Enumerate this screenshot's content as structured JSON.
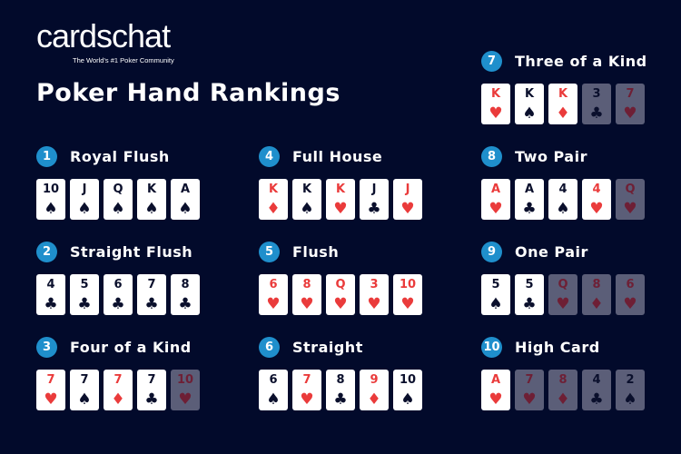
{
  "brand": {
    "name": "cardschat",
    "tagline": "The World's #1 Poker Community"
  },
  "title": "Poker Hand Rankings",
  "colors": {
    "background": "#020a2b",
    "badge": "#1f8fcc",
    "red_suit": "#ea3b3b",
    "dimmed_card": "#5b5e78"
  },
  "hands": [
    {
      "num": "1",
      "name": "Royal Flush",
      "cards": [
        {
          "rank": "10",
          "suit": "♠"
        },
        {
          "rank": "J",
          "suit": "♠"
        },
        {
          "rank": "Q",
          "suit": "♠"
        },
        {
          "rank": "K",
          "suit": "♠"
        },
        {
          "rank": "A",
          "suit": "♠"
        }
      ]
    },
    {
      "num": "2",
      "name": "Straight Flush",
      "cards": [
        {
          "rank": "4",
          "suit": "♣"
        },
        {
          "rank": "5",
          "suit": "♣"
        },
        {
          "rank": "6",
          "suit": "♣"
        },
        {
          "rank": "7",
          "suit": "♣"
        },
        {
          "rank": "8",
          "suit": "♣"
        }
      ]
    },
    {
      "num": "3",
      "name": "Four of a Kind",
      "cards": [
        {
          "rank": "7",
          "suit": "♥"
        },
        {
          "rank": "7",
          "suit": "♠"
        },
        {
          "rank": "7",
          "suit": "♦"
        },
        {
          "rank": "7",
          "suit": "♣"
        },
        {
          "rank": "10",
          "suit": "♥",
          "dim": true
        }
      ]
    },
    {
      "num": "4",
      "name": "Full House",
      "cards": [
        {
          "rank": "K",
          "suit": "♦"
        },
        {
          "rank": "K",
          "suit": "♠"
        },
        {
          "rank": "K",
          "suit": "♥"
        },
        {
          "rank": "J",
          "suit": "♣"
        },
        {
          "rank": "J",
          "suit": "♥"
        }
      ]
    },
    {
      "num": "5",
      "name": "Flush",
      "cards": [
        {
          "rank": "6",
          "suit": "♥"
        },
        {
          "rank": "8",
          "suit": "♥"
        },
        {
          "rank": "Q",
          "suit": "♥"
        },
        {
          "rank": "3",
          "suit": "♥"
        },
        {
          "rank": "10",
          "suit": "♥"
        }
      ]
    },
    {
      "num": "6",
      "name": "Straight",
      "cards": [
        {
          "rank": "6",
          "suit": "♠"
        },
        {
          "rank": "7",
          "suit": "♥"
        },
        {
          "rank": "8",
          "suit": "♣"
        },
        {
          "rank": "9",
          "suit": "♦"
        },
        {
          "rank": "10",
          "suit": "♠"
        }
      ]
    },
    {
      "num": "7",
      "name": "Three of a Kind",
      "cards": [
        {
          "rank": "K",
          "suit": "♥"
        },
        {
          "rank": "K",
          "suit": "♠"
        },
        {
          "rank": "K",
          "suit": "♦"
        },
        {
          "rank": "3",
          "suit": "♣",
          "dim": true
        },
        {
          "rank": "7",
          "suit": "♥",
          "dim": true
        }
      ]
    },
    {
      "num": "8",
      "name": "Two Pair",
      "cards": [
        {
          "rank": "A",
          "suit": "♥"
        },
        {
          "rank": "A",
          "suit": "♣"
        },
        {
          "rank": "4",
          "suit": "♠"
        },
        {
          "rank": "4",
          "suit": "♥"
        },
        {
          "rank": "Q",
          "suit": "♥",
          "dim": true
        }
      ]
    },
    {
      "num": "9",
      "name": "One Pair",
      "cards": [
        {
          "rank": "5",
          "suit": "♠"
        },
        {
          "rank": "5",
          "suit": "♣"
        },
        {
          "rank": "Q",
          "suit": "♥",
          "dim": true
        },
        {
          "rank": "8",
          "suit": "♦",
          "dim": true
        },
        {
          "rank": "6",
          "suit": "♥",
          "dim": true
        }
      ]
    },
    {
      "num": "10",
      "name": "High Card",
      "cards": [
        {
          "rank": "A",
          "suit": "♥"
        },
        {
          "rank": "7",
          "suit": "♥",
          "dim": true
        },
        {
          "rank": "8",
          "suit": "♦",
          "dim": true
        },
        {
          "rank": "4",
          "suit": "♣",
          "dim": true
        },
        {
          "rank": "2",
          "suit": "♠",
          "dim": true
        }
      ]
    }
  ]
}
